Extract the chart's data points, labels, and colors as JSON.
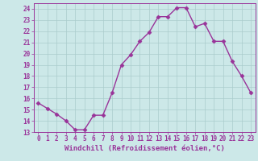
{
  "x": [
    0,
    1,
    2,
    3,
    4,
    5,
    6,
    7,
    8,
    9,
    10,
    11,
    12,
    13,
    14,
    15,
    16,
    17,
    18,
    19,
    20,
    21,
    22,
    23
  ],
  "y": [
    15.6,
    15.1,
    14.6,
    14.0,
    13.2,
    13.2,
    14.5,
    14.5,
    16.5,
    19.0,
    19.9,
    21.1,
    21.9,
    23.3,
    23.3,
    24.1,
    24.1,
    22.4,
    22.7,
    21.1,
    21.1,
    19.3,
    18.0,
    16.5
  ],
  "line_color": "#993399",
  "marker": "D",
  "marker_size": 2.5,
  "bg_color": "#cce8e8",
  "grid_color": "#aacccc",
  "xlabel": "Windchill (Refroidissement éolien,°C)",
  "ylim": [
    13,
    24.5
  ],
  "xlim": [
    -0.5,
    23.5
  ],
  "yticks": [
    13,
    14,
    15,
    16,
    17,
    18,
    19,
    20,
    21,
    22,
    23,
    24
  ],
  "xticks": [
    0,
    1,
    2,
    3,
    4,
    5,
    6,
    7,
    8,
    9,
    10,
    11,
    12,
    13,
    14,
    15,
    16,
    17,
    18,
    19,
    20,
    21,
    22,
    23
  ],
  "xlabel_fontsize": 6.5,
  "tick_fontsize": 5.5,
  "line_width": 1.0
}
